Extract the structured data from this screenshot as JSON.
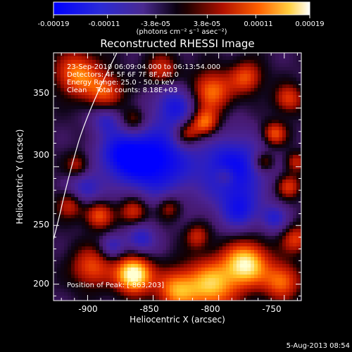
{
  "colorbar": {
    "tick_labels": [
      "-0.00019",
      "-0.00011",
      "-3.8e-05",
      "3.8e-05",
      "0.00011",
      "0.00019"
    ],
    "tick_values": [
      -0.00019,
      -0.00011,
      -3.8e-05,
      3.8e-05,
      0.00011,
      0.00019
    ],
    "range": [
      -0.00019,
      0.00019
    ],
    "units": "(photons cm⁻² s⁻¹ asec⁻²)"
  },
  "image": {
    "title": "Reconstructed RHESSI Image",
    "info_lines": [
      "23-Sep-2010 06:09:04.000 to 06:13:54.000",
      "Detectors: 4F 5F 6F 7F 8F, Att 0",
      "Energy Range: 25.0 - 50.0 keV",
      "Clean    Total counts: 8.18E+03"
    ],
    "peak_label": "Position of Peak: [-863,203]",
    "peak_position": [
      -863,
      203
    ],
    "xlabel": "Heliocentric X (arcsec)",
    "ylabel": "Heliocentric Y (arcsec)",
    "xticks": [
      "-900",
      "-850",
      "-800",
      "-750"
    ],
    "xtick_values": [
      -900,
      -850,
      -800,
      -750
    ],
    "yticks": [
      "200",
      "250",
      "300",
      "350"
    ],
    "ytick_values": [
      200,
      250,
      300,
      350
    ],
    "xlim": [
      -926,
      -737
    ],
    "ylim": [
      186,
      397
    ],
    "colors": {
      "low": "#0000ff",
      "mid_low": "#3a1a6e",
      "zero": "#000000",
      "mid_high": "#c02000",
      "high": "#ffffe0"
    }
  },
  "footer": {
    "timestamp": "5-Aug-2013 08:54"
  }
}
